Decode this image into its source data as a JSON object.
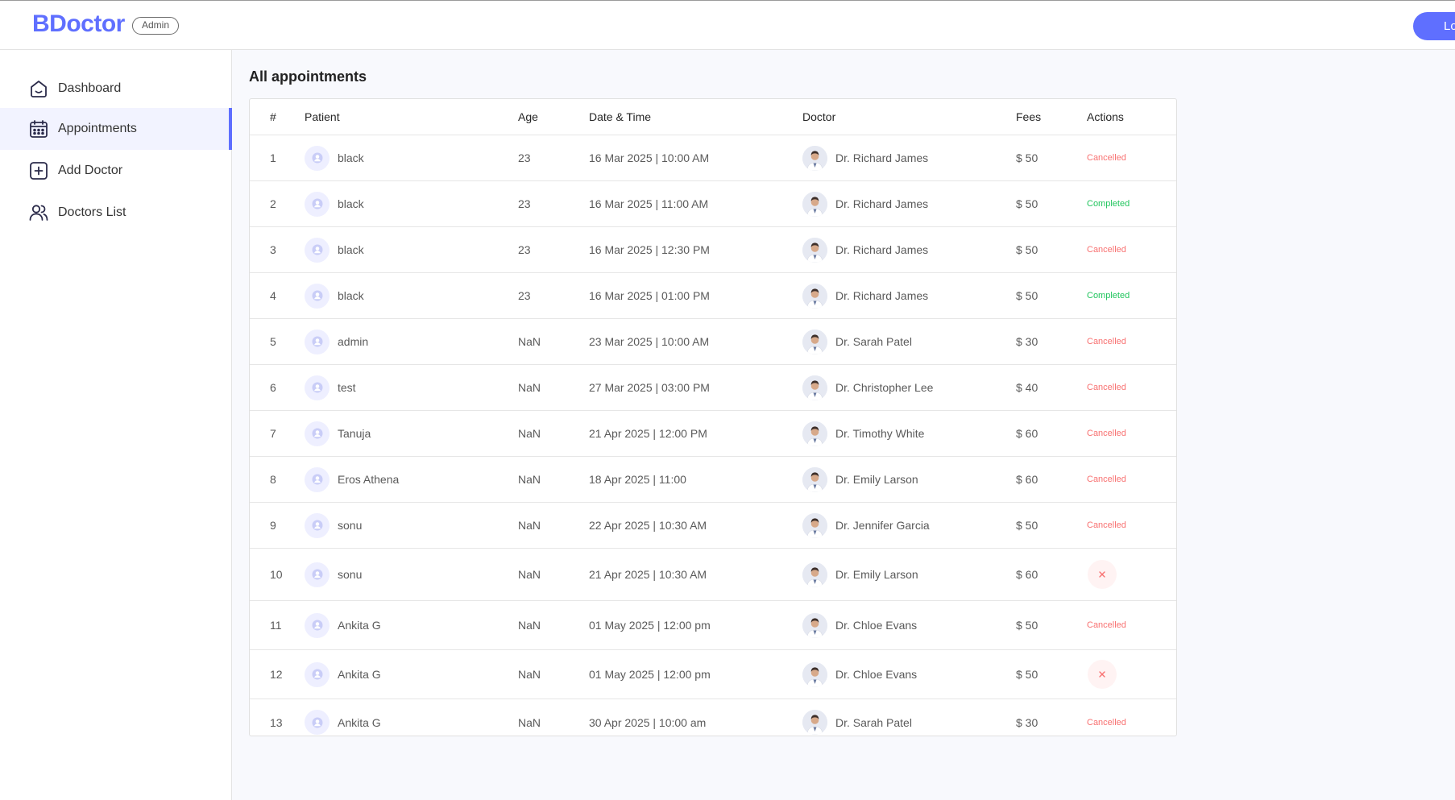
{
  "header": {
    "brand": "BDoctor",
    "role_badge": "Admin",
    "logout_label": "Lo"
  },
  "sidebar": {
    "items": [
      {
        "label": "Dashboard",
        "icon": "home-icon"
      },
      {
        "label": "Appointments",
        "icon": "calendar-icon",
        "active": true
      },
      {
        "label": "Add Doctor",
        "icon": "add-square-icon"
      },
      {
        "label": "Doctors List",
        "icon": "people-icon"
      }
    ]
  },
  "main": {
    "title": "All appointments",
    "columns": [
      "#",
      "Patient",
      "Age",
      "Date & Time",
      "Doctor",
      "Fees",
      "Actions"
    ],
    "rows": [
      {
        "idx": "1",
        "patient": "black",
        "age": "23",
        "datetime": "16 Mar 2025 | 10:00 AM",
        "doctor": "Dr. Richard James",
        "fees": "$ 50",
        "action": "Cancelled",
        "status": "cancelled"
      },
      {
        "idx": "2",
        "patient": "black",
        "age": "23",
        "datetime": "16 Mar 2025 | 11:00 AM",
        "doctor": "Dr. Richard James",
        "fees": "$ 50",
        "action": "Completed",
        "status": "completed"
      },
      {
        "idx": "3",
        "patient": "black",
        "age": "23",
        "datetime": "16 Mar 2025 | 12:30 PM",
        "doctor": "Dr. Richard James",
        "fees": "$ 50",
        "action": "Cancelled",
        "status": "cancelled"
      },
      {
        "idx": "4",
        "patient": "black",
        "age": "23",
        "datetime": "16 Mar 2025 | 01:00 PM",
        "doctor": "Dr. Richard James",
        "fees": "$ 50",
        "action": "Completed",
        "status": "completed"
      },
      {
        "idx": "5",
        "patient": "admin",
        "age": "NaN",
        "datetime": "23 Mar 2025 | 10:00 AM",
        "doctor": "Dr. Sarah Patel",
        "fees": "$ 30",
        "action": "Cancelled",
        "status": "cancelled"
      },
      {
        "idx": "6",
        "patient": "test",
        "age": "NaN",
        "datetime": "27 Mar 2025 | 03:00 PM",
        "doctor": "Dr. Christopher Lee",
        "fees": "$ 40",
        "action": "Cancelled",
        "status": "cancelled"
      },
      {
        "idx": "7",
        "patient": "Tanuja",
        "age": "NaN",
        "datetime": "21 Apr 2025 | 12:00 PM",
        "doctor": "Dr. Timothy White",
        "fees": "$ 60",
        "action": "Cancelled",
        "status": "cancelled"
      },
      {
        "idx": "8",
        "patient": "Eros Athena",
        "age": "NaN",
        "datetime": "18 Apr 2025 | 11:00",
        "doctor": "Dr. Emily Larson",
        "fees": "$ 60",
        "action": "Cancelled",
        "status": "cancelled"
      },
      {
        "idx": "9",
        "patient": "sonu",
        "age": "NaN",
        "datetime": "22 Apr 2025 | 10:30 AM",
        "doctor": "Dr. Jennifer Garcia",
        "fees": "$ 50",
        "action": "Cancelled",
        "status": "cancelled"
      },
      {
        "idx": "10",
        "patient": "sonu",
        "age": "NaN",
        "datetime": "21 Apr 2025 | 10:30 AM",
        "doctor": "Dr. Emily Larson",
        "fees": "$ 60",
        "action": "",
        "status": "pending"
      },
      {
        "idx": "11",
        "patient": "Ankita G",
        "age": "NaN",
        "datetime": "01 May 2025 | 12:00 pm",
        "doctor": "Dr. Chloe Evans",
        "fees": "$ 50",
        "action": "Cancelled",
        "status": "cancelled"
      },
      {
        "idx": "12",
        "patient": "Ankita G",
        "age": "NaN",
        "datetime": "01 May 2025 | 12:00 pm",
        "doctor": "Dr. Chloe Evans",
        "fees": "$ 50",
        "action": "",
        "status": "pending"
      },
      {
        "idx": "13",
        "patient": "Ankita G",
        "age": "NaN",
        "datetime": "30 Apr 2025 | 10:00 am",
        "doctor": "Dr. Sarah Patel",
        "fees": "$ 30",
        "action": "Cancelled",
        "status": "cancelled"
      }
    ]
  },
  "colors": {
    "accent": "#5f6fff",
    "cancelled": "#f87171",
    "completed": "#22c55e"
  }
}
